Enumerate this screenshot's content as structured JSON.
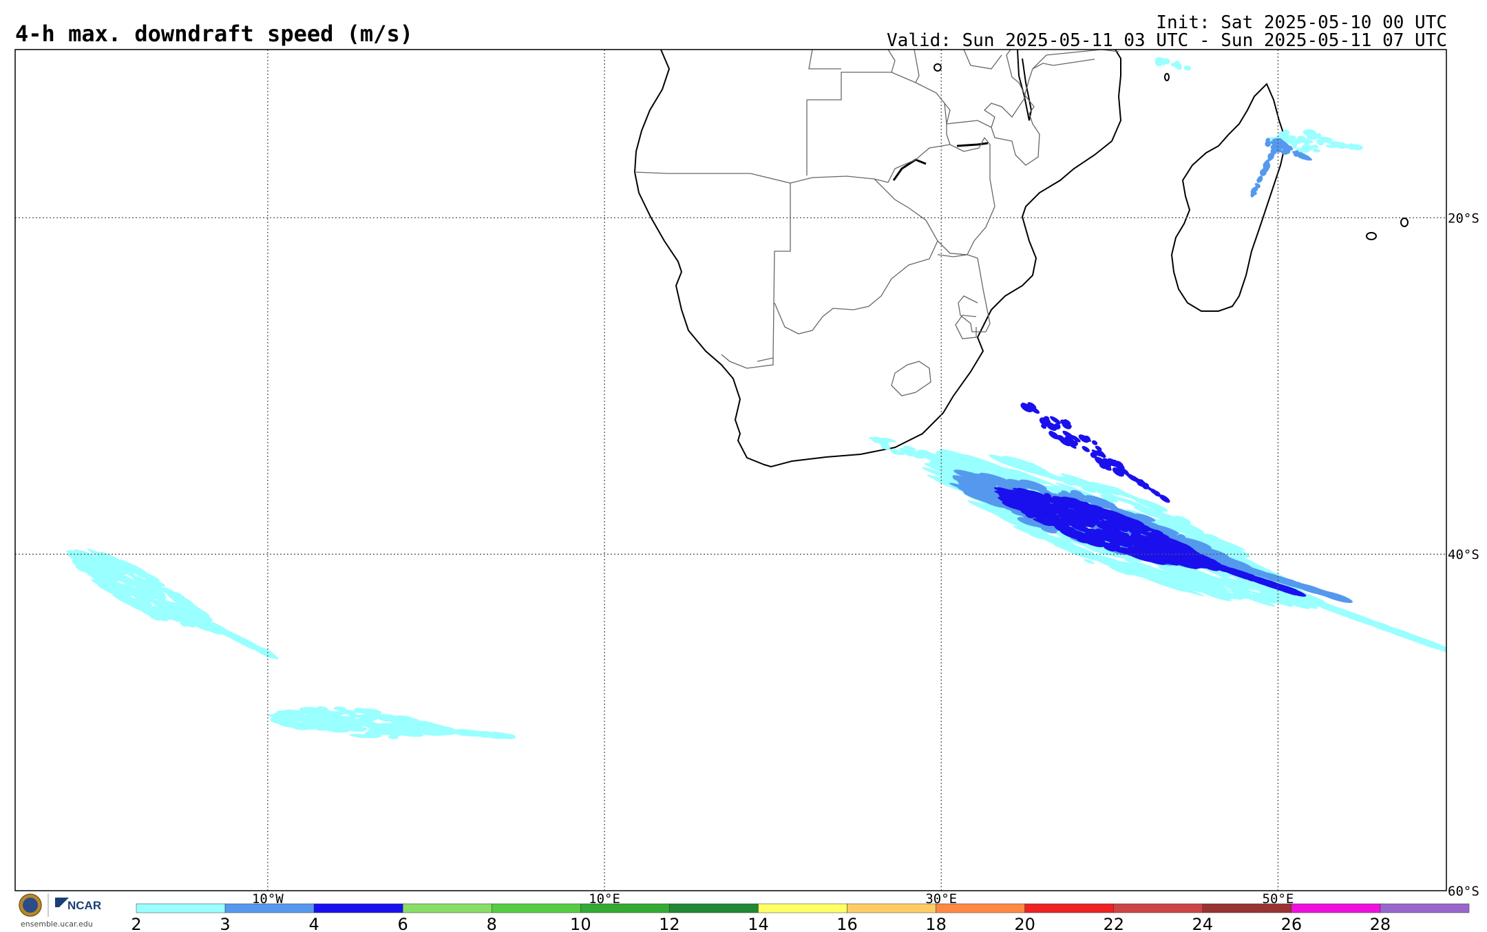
{
  "header": {
    "title": "4-h max. downdraft speed (m/s)",
    "init": "Init: Sat 2025-05-10 00 UTC",
    "valid": "Valid: Sun 2025-05-11 03 UTC - Sun 2025-05-11 07 UTC"
  },
  "map": {
    "projection": "cylindrical",
    "lon_range": [
      -25,
      60
    ],
    "lat_range": [
      -60,
      -10
    ],
    "meridians": [
      {
        "lon": -10,
        "label": "10°W"
      },
      {
        "lon": 10,
        "label": "10°E"
      },
      {
        "lon": 30,
        "label": "30°E"
      },
      {
        "lon": 50,
        "label": "50°E"
      }
    ],
    "parallels": [
      {
        "lat": -20,
        "label": "20°S"
      },
      {
        "lat": -40,
        "label": "40°S"
      },
      {
        "lat": -60,
        "label": "60°S"
      }
    ],
    "grid": "dotted"
  },
  "colorbar": {
    "unit": "m/s",
    "bins": [
      {
        "from": 2,
        "to": 3,
        "color": "#99ffff"
      },
      {
        "from": 3,
        "to": 4,
        "color": "#5599ee"
      },
      {
        "from": 4,
        "to": 6,
        "color": "#1a10ee"
      },
      {
        "from": 6,
        "to": 8,
        "color": "#88dd66"
      },
      {
        "from": 8,
        "to": 10,
        "color": "#55cc44"
      },
      {
        "from": 10,
        "to": 12,
        "color": "#33aa33"
      },
      {
        "from": 12,
        "to": 14,
        "color": "#228833"
      },
      {
        "from": 14,
        "to": 16,
        "color": "#ffff66"
      },
      {
        "from": 16,
        "to": 18,
        "color": "#ffcc66"
      },
      {
        "from": 18,
        "to": 20,
        "color": "#ff8844"
      },
      {
        "from": 20,
        "to": 22,
        "color": "#ee2222"
      },
      {
        "from": 22,
        "to": 24,
        "color": "#cc4444"
      },
      {
        "from": 24,
        "to": 26,
        "color": "#993333"
      },
      {
        "from": 26,
        "to": 28,
        "color": "#ee11dd"
      },
      {
        "from": 28,
        "to": 30,
        "color": "#9966cc"
      }
    ],
    "tick_labels": [
      "2",
      "3",
      "4",
      "6",
      "8",
      "10",
      "12",
      "14",
      "16",
      "18",
      "20",
      "22",
      "24",
      "26",
      "28"
    ]
  },
  "features": [
    {
      "region": "southern ocean south of africa",
      "level": "4-6",
      "lon": [
        31,
        55
      ],
      "lat": [
        -35,
        -44
      ]
    },
    {
      "region": "southern ocean south of africa",
      "level": "2-3",
      "lon": [
        30,
        58
      ],
      "lat": [
        -34,
        -46
      ]
    },
    {
      "region": "south atlantic west",
      "level": "2-3",
      "lon": [
        -22,
        -12
      ],
      "lat": [
        -40,
        -46
      ]
    },
    {
      "region": "south atlantic central",
      "level": "2-3",
      "lon": [
        -6,
        3
      ],
      "lat": [
        -50,
        -53
      ]
    },
    {
      "region": "madagascar east coast",
      "level": "3-4",
      "lon": [
        47,
        52
      ],
      "lat": [
        -14,
        -22
      ]
    }
  ],
  "logo": {
    "org": "NCAR",
    "url": "ensemble.ucar.edu"
  }
}
